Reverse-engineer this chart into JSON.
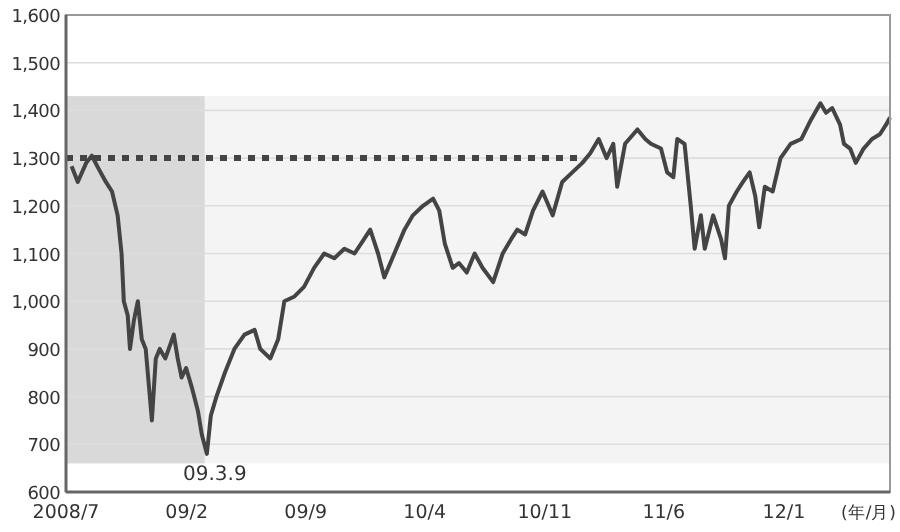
{
  "chart_data": {
    "type": "line",
    "xlabel": "(年/月)",
    "xlim": [
      "2008-07-01",
      "2012-07-08"
    ],
    "xticks": [
      {
        "value": "2008-07-01",
        "label": "2008/7"
      },
      {
        "value": "2009-02-01",
        "label": "09/2"
      },
      {
        "value": "2009-09-01",
        "label": "09/9"
      },
      {
        "value": "2010-04-01",
        "label": "10/4"
      },
      {
        "value": "2010-11-01",
        "label": "10/11"
      },
      {
        "value": "2011-06-01",
        "label": "11/6"
      },
      {
        "value": "2012-01-01",
        "label": "12/1"
      }
    ],
    "ylim": [
      600,
      1600
    ],
    "yticks": [
      {
        "value": 600,
        "label": "600"
      },
      {
        "value": 700,
        "label": "700"
      },
      {
        "value": 800,
        "label": "800"
      },
      {
        "value": 900,
        "label": "900"
      },
      {
        "value": 1000,
        "label": "1,000"
      },
      {
        "value": 1100,
        "label": "1,100"
      },
      {
        "value": 1200,
        "label": "1,200"
      },
      {
        "value": 1300,
        "label": "1,300"
      },
      {
        "value": 1400,
        "label": "1,400"
      },
      {
        "value": 1500,
        "label": "1,500"
      },
      {
        "value": 1600,
        "label": "1,600"
      }
    ],
    "grid": "y",
    "bands": [
      {
        "axis": "y",
        "from": 660,
        "to": 1430,
        "color": "#f4f4f4"
      },
      {
        "axis": "x",
        "from": "2008-07-01",
        "to": "2009-03-05",
        "color": "#d9d9d9"
      }
    ],
    "annotations": [
      {
        "text": "09.3.9",
        "x": "2009-03-09",
        "y": 680
      }
    ],
    "series": [
      {
        "color": "#444444",
        "line_style": "solid",
        "x": [
          "2008-07-11",
          "2008-07-22",
          "2008-08-06",
          "2008-08-16",
          "2008-08-27",
          "2008-09-10",
          "2008-09-21",
          "2008-10-01",
          "2008-10-08",
          "2008-10-12",
          "2008-10-19",
          "2008-10-23",
          "2008-10-30",
          "2008-11-06",
          "2008-11-13",
          "2008-11-20",
          "2008-12-01",
          "2008-12-08",
          "2008-12-15",
          "2008-12-25",
          "2009-01-09",
          "2009-01-16",
          "2009-01-23",
          "2009-01-31",
          "2009-02-10",
          "2009-02-21",
          "2009-02-28",
          "2009-03-09",
          "2009-03-16",
          "2009-03-26",
          "2009-04-10",
          "2009-04-27",
          "2009-05-15",
          "2009-06-02",
          "2009-06-12",
          "2009-06-30",
          "2009-07-14",
          "2009-07-25",
          "2009-08-12",
          "2009-08-29",
          "2009-09-16",
          "2009-10-04",
          "2009-10-22",
          "2009-11-09",
          "2009-11-27",
          "2009-12-14",
          "2009-12-25",
          "2010-01-08",
          "2010-01-19",
          "2010-02-06",
          "2010-02-24",
          "2010-03-11",
          "2010-03-29",
          "2010-04-16",
          "2010-04-27",
          "2010-05-07",
          "2010-05-21",
          "2010-06-01",
          "2010-06-15",
          "2010-06-29",
          "2010-07-13",
          "2010-08-01",
          "2010-08-18",
          "2010-09-02",
          "2010-09-13",
          "2010-09-27",
          "2010-10-11",
          "2010-10-28",
          "2010-11-15",
          "2010-12-02",
          "2010-12-20",
          "2011-01-07",
          "2011-01-21",
          "2011-02-05",
          "2011-02-19",
          "2011-03-03",
          "2011-03-10",
          "2011-03-24",
          "2011-04-15",
          "2011-04-29",
          "2011-05-09",
          "2011-05-27",
          "2011-06-07",
          "2011-06-18",
          "2011-06-25",
          "2011-07-08",
          "2011-07-19",
          "2011-07-26",
          "2011-08-06",
          "2011-08-13",
          "2011-08-28",
          "2011-09-11",
          "2011-09-18",
          "2011-09-25",
          "2011-10-09",
          "2011-10-20",
          "2011-11-01",
          "2011-11-11",
          "2011-11-18",
          "2011-11-28",
          "2011-12-12",
          "2011-12-26",
          "2012-01-13",
          "2012-02-01",
          "2012-02-18",
          "2012-03-06",
          "2012-03-16",
          "2012-03-27",
          "2012-04-10",
          "2012-04-17",
          "2012-04-28",
          "2012-05-08",
          "2012-05-22",
          "2012-06-06",
          "2012-06-20",
          "2012-07-01",
          "2012-07-08"
        ],
        "values": [
          1283,
          1250,
          1290,
          1305,
          1280,
          1250,
          1230,
          1180,
          1100,
          1000,
          970,
          900,
          960,
          1000,
          920,
          900,
          750,
          880,
          900,
          880,
          930,
          880,
          840,
          860,
          820,
          770,
          720,
          680,
          760,
          800,
          850,
          900,
          930,
          940,
          900,
          880,
          920,
          1000,
          1010,
          1030,
          1070,
          1100,
          1090,
          1110,
          1100,
          1130,
          1150,
          1100,
          1050,
          1100,
          1150,
          1180,
          1200,
          1215,
          1190,
          1120,
          1070,
          1080,
          1060,
          1100,
          1070,
          1040,
          1100,
          1130,
          1150,
          1140,
          1190,
          1230,
          1180,
          1250,
          1270,
          1290,
          1310,
          1340,
          1300,
          1330,
          1240,
          1330,
          1360,
          1340,
          1330,
          1320,
          1270,
          1260,
          1340,
          1330,
          1200,
          1110,
          1180,
          1110,
          1180,
          1130,
          1090,
          1200,
          1230,
          1250,
          1270,
          1220,
          1155,
          1240,
          1230,
          1300,
          1330,
          1340,
          1380,
          1415,
          1395,
          1405,
          1370,
          1330,
          1320,
          1290,
          1320,
          1340,
          1350,
          1370,
          1385
        ]
      },
      {
        "color": "#444444",
        "line_style": "dotted",
        "x": [
          "2008-07-01",
          "2011-01-07"
        ],
        "values": [
          1300,
          1300
        ]
      }
    ]
  }
}
